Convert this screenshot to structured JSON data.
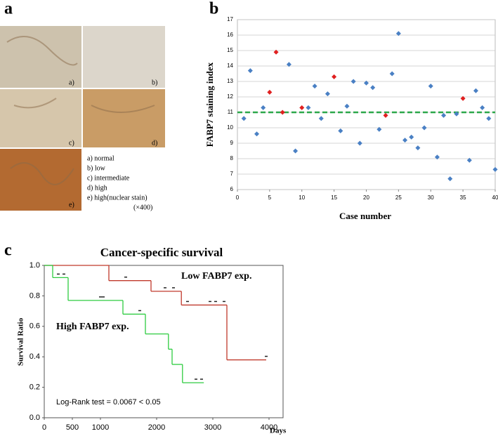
{
  "panel_labels": [
    "a",
    "b",
    "c"
  ],
  "micrographs": {
    "image_labels": [
      "a)",
      "b)",
      "c)",
      "d)",
      "e)"
    ],
    "legend": [
      "a) normal",
      "b) low",
      "c) intermediate",
      "d) high",
      "e) high(nuclear stain)"
    ],
    "magnification": "(×400)"
  },
  "chart_data": [
    {
      "type": "scatter",
      "y_label": "FABP7 staining index",
      "x_label": "Case number",
      "xlim": [
        0,
        40
      ],
      "ylim": [
        6,
        17
      ],
      "xticks": [
        0,
        5,
        10,
        15,
        20,
        25,
        30,
        35,
        40
      ],
      "yticks": [
        6,
        7,
        8,
        9,
        10,
        11,
        12,
        13,
        14,
        15,
        16,
        17
      ],
      "grid": true,
      "x": [
        1,
        2,
        3,
        4,
        5,
        6,
        7,
        8,
        9,
        10,
        11,
        12,
        13,
        14,
        15,
        16,
        17,
        18,
        19,
        20,
        21,
        22,
        23,
        24,
        25,
        26,
        27,
        28,
        29,
        30,
        31,
        32,
        33,
        34,
        35,
        36,
        37,
        38,
        39,
        40
      ],
      "values": [
        10.6,
        13.7,
        9.6,
        11.3,
        12.3,
        14.9,
        11.0,
        14.1,
        8.5,
        11.3,
        11.3,
        12.7,
        10.6,
        12.2,
        13.3,
        9.8,
        11.4,
        13.0,
        9.0,
        12.9,
        12.6,
        9.9,
        10.8,
        13.5,
        16.1,
        9.2,
        9.4,
        8.7,
        10.0,
        12.7,
        8.1,
        10.8,
        6.7,
        10.9,
        11.9,
        7.9,
        12.4,
        11.3,
        10.6,
        7.3
      ],
      "colors": [
        "#4a80c4",
        "#4a80c4",
        "#4a80c4",
        "#4a80c4",
        "#e02020",
        "#e02020",
        "#e02020",
        "#4a80c4",
        "#4a80c4",
        "#e02020",
        "#4a80c4",
        "#4a80c4",
        "#4a80c4",
        "#4a80c4",
        "#e02020",
        "#4a80c4",
        "#4a80c4",
        "#4a80c4",
        "#4a80c4",
        "#4a80c4",
        "#4a80c4",
        "#4a80c4",
        "#e02020",
        "#4a80c4",
        "#4a80c4",
        "#4a80c4",
        "#4a80c4",
        "#4a80c4",
        "#4a80c4",
        "#4a80c4",
        "#4a80c4",
        "#4a80c4",
        "#4a80c4",
        "#4a80c4",
        "#e02020",
        "#4a80c4",
        "#4a80c4",
        "#4a80c4",
        "#4a80c4",
        "#4a80c4"
      ],
      "reference_line": {
        "value": 11.0,
        "color": "#2ca84a"
      }
    },
    {
      "type": "step",
      "title": "Cancer-specific survival",
      "x_label": "Days",
      "y_label": "Survival Ratio",
      "annotation": "Log-Rank test = 0.0067 < 0.05",
      "xlim": [
        0,
        4250
      ],
      "ylim": [
        0,
        1
      ],
      "xticks": [
        0,
        500,
        1000,
        2000,
        3000,
        4000
      ],
      "yticks": [
        {
          "value": 0,
          "label": "0.0"
        },
        0.2,
        0.4,
        0.6,
        0.8,
        {
          "value": 1,
          "label": "1.0"
        }
      ],
      "series": [
        {
          "name": "Low FABP7 exp.",
          "color": "#c0392b",
          "x": [
            0,
            1150,
            1900,
            2440,
            3250,
            3950
          ],
          "values": [
            1.0,
            0.9,
            0.83,
            0.74,
            0.38,
            0.38
          ],
          "censored": [
            1450,
            2150,
            2300,
            2550,
            2950,
            3050,
            3200,
            3950
          ]
        },
        {
          "name": "High FABP7 exp.",
          "color": "#2ecc40",
          "x": [
            0,
            150,
            425,
            1400,
            1800,
            2210,
            2275,
            2460,
            2840
          ],
          "values": [
            1.0,
            0.92,
            0.77,
            0.68,
            0.55,
            0.45,
            0.35,
            0.23,
            0.23
          ],
          "censored": [
            250,
            350,
            1000,
            1050,
            1700,
            2700,
            2800
          ]
        }
      ]
    }
  ]
}
